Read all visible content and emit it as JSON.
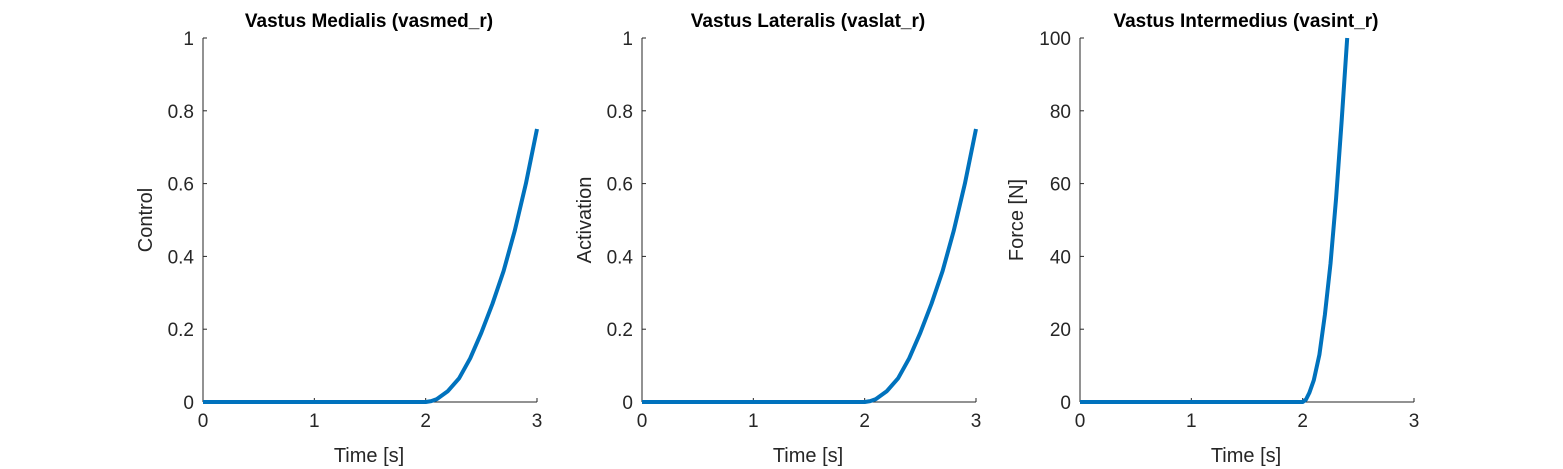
{
  "chart_data": [
    {
      "type": "line",
      "title": "Vastus Medialis (vasmed_r)",
      "xlabel": "Time [s]",
      "ylabel": "Control",
      "xlim": [
        0,
        3
      ],
      "ylim": [
        0,
        1
      ],
      "xticks": [
        0,
        1,
        2,
        3
      ],
      "yticks": [
        0,
        0.2,
        0.4,
        0.6,
        0.8,
        1
      ],
      "xtick_labels": [
        "0",
        "1",
        "2",
        "3"
      ],
      "ytick_labels": [
        "0",
        "0.2",
        "0.4",
        "0.6",
        "0.8",
        "1"
      ],
      "grid": false,
      "line_color": "#0072BD",
      "series": [
        {
          "x": [
            0,
            0.5,
            1,
            1.5,
            2,
            2.05,
            2.1,
            2.2,
            2.3,
            2.4,
            2.5,
            2.6,
            2.7,
            2.8,
            2.9,
            3
          ],
          "values": [
            0,
            0,
            0,
            0,
            0,
            0.0025,
            0.008,
            0.03,
            0.065,
            0.12,
            0.19,
            0.27,
            0.36,
            0.47,
            0.6,
            0.75
          ]
        }
      ]
    },
    {
      "type": "line",
      "title": "Vastus Lateralis (vaslat_r)",
      "xlabel": "Time [s]",
      "ylabel": "Activation",
      "xlim": [
        0,
        3
      ],
      "ylim": [
        0,
        1
      ],
      "xticks": [
        0,
        1,
        2,
        3
      ],
      "yticks": [
        0,
        0.2,
        0.4,
        0.6,
        0.8,
        1
      ],
      "xtick_labels": [
        "0",
        "1",
        "2",
        "3"
      ],
      "ytick_labels": [
        "0",
        "0.2",
        "0.4",
        "0.6",
        "0.8",
        "1"
      ],
      "grid": false,
      "line_color": "#0072BD",
      "series": [
        {
          "x": [
            0,
            0.5,
            1,
            1.5,
            2,
            2.05,
            2.1,
            2.2,
            2.3,
            2.4,
            2.5,
            2.6,
            2.7,
            2.8,
            2.9,
            3
          ],
          "values": [
            0,
            0,
            0,
            0,
            0,
            0.0025,
            0.008,
            0.03,
            0.065,
            0.12,
            0.19,
            0.27,
            0.36,
            0.47,
            0.6,
            0.75
          ]
        }
      ]
    },
    {
      "type": "line",
      "title": "Vastus Intermedius (vasint_r)",
      "xlabel": "Time [s]",
      "ylabel": "Force [N]",
      "xlim": [
        0,
        3
      ],
      "ylim": [
        0,
        100
      ],
      "xticks": [
        0,
        1,
        2,
        3
      ],
      "yticks": [
        0,
        20,
        40,
        60,
        80,
        100
      ],
      "xtick_labels": [
        "0",
        "1",
        "2",
        "3"
      ],
      "ytick_labels": [
        "0",
        "20",
        "40",
        "60",
        "80",
        "100"
      ],
      "grid": false,
      "line_color": "#0072BD",
      "series": [
        {
          "x": [
            0,
            0.5,
            1,
            1.5,
            2,
            2.03,
            2.06,
            2.1,
            2.15,
            2.2,
            2.25,
            2.3,
            2.35,
            2.4
          ],
          "values": [
            0,
            0,
            0,
            0,
            0,
            0.7,
            2.5,
            6,
            13,
            24,
            38,
            56,
            77,
            100
          ]
        }
      ]
    }
  ]
}
